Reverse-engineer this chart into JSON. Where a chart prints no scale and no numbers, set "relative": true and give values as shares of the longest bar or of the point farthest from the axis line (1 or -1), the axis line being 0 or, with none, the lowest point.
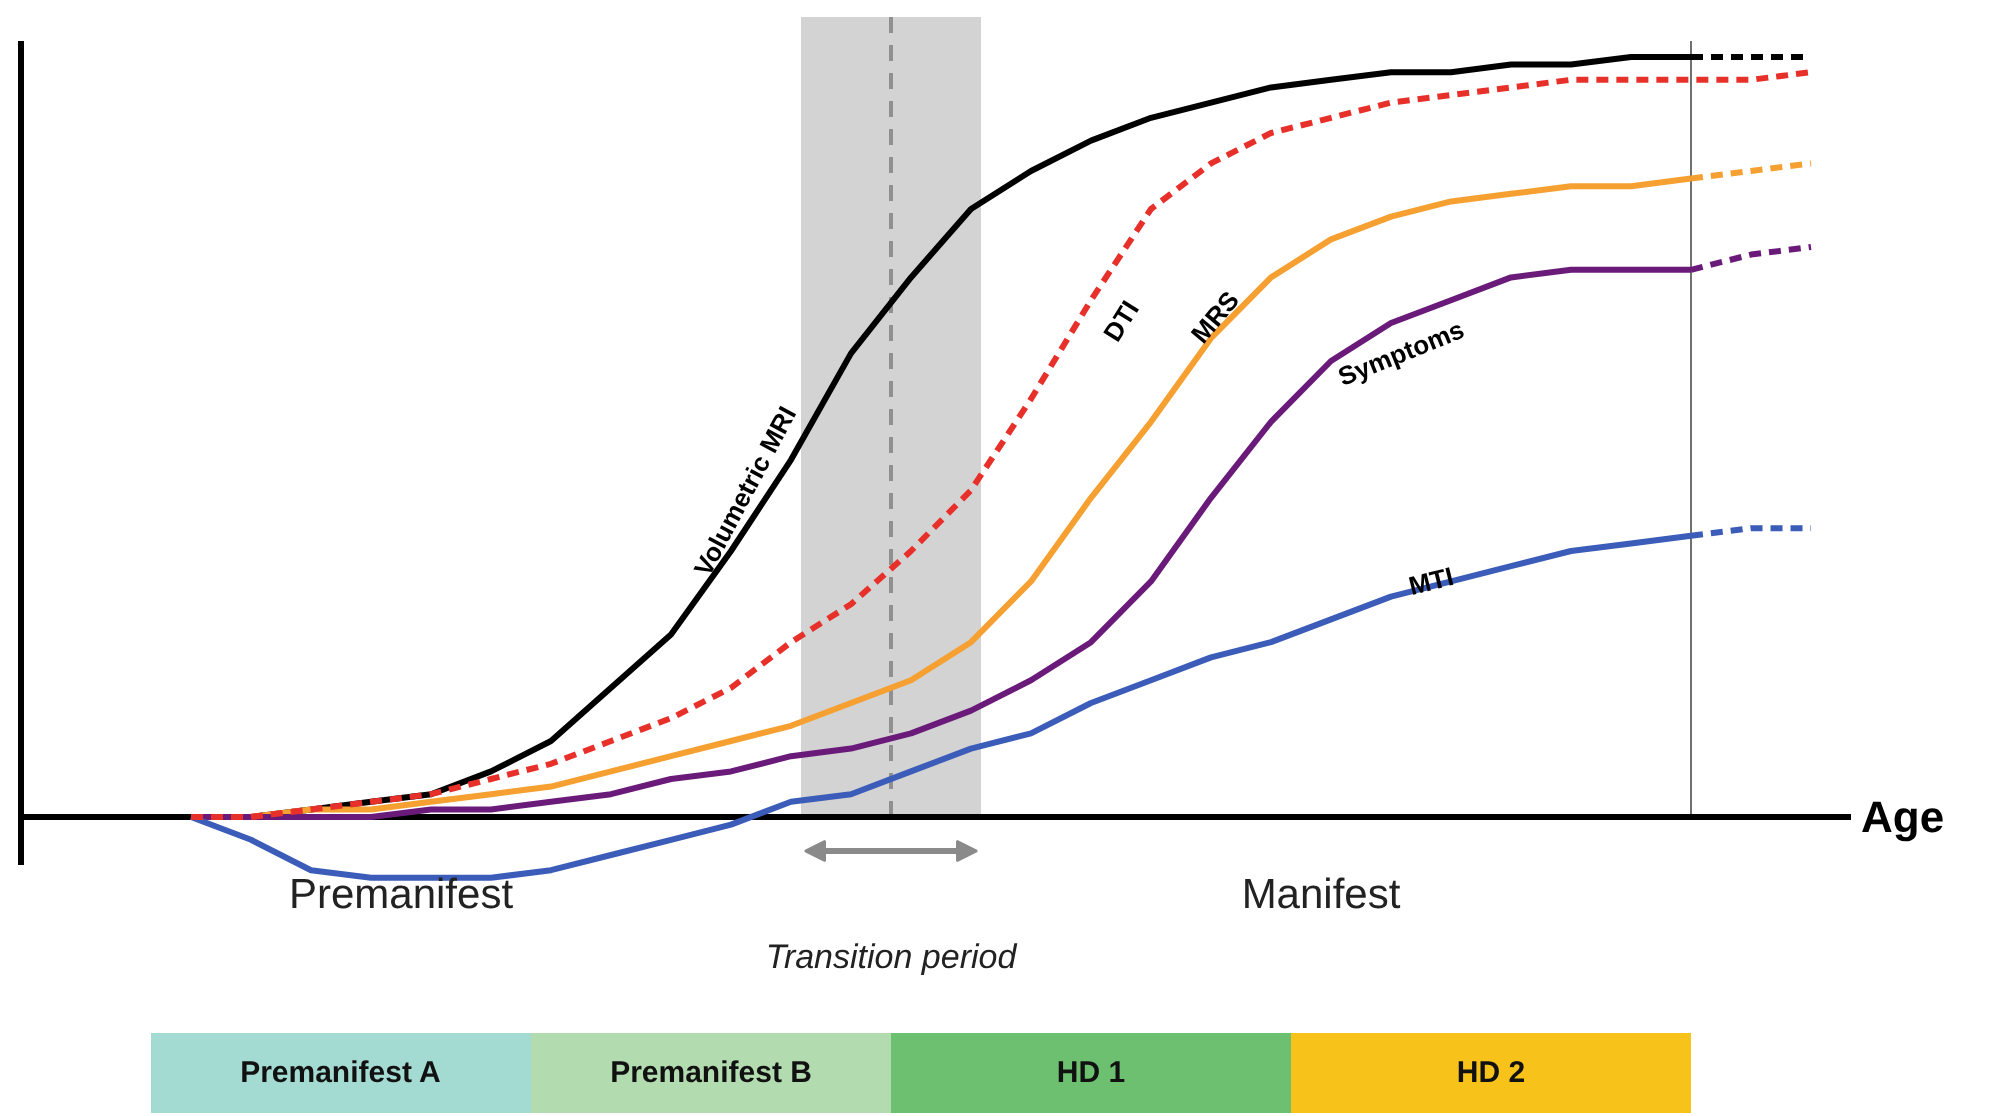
{
  "chart_data": {
    "type": "line",
    "relative": true,
    "xlabel": "Age",
    "grid": false,
    "marker": "none",
    "categories": [
      null,
      null,
      null,
      null,
      null,
      null,
      null,
      null,
      null,
      null,
      null,
      null,
      null,
      null,
      null,
      null,
      null,
      null,
      null,
      null,
      null,
      null,
      null,
      null,
      null,
      null,
      null,
      null
    ],
    "series": [
      {
        "name": "Volumetric MRI",
        "color": "#000000",
        "line_style": "solid",
        "values": [
          0,
          0.0,
          0.01,
          0.02,
          0.03,
          0.06,
          0.1,
          0.17,
          0.24,
          0.35,
          0.47,
          0.61,
          0.71,
          0.8,
          0.85,
          0.89,
          0.92,
          0.94,
          0.96,
          0.97,
          0.98,
          0.98,
          0.99,
          0.99,
          1.0,
          1,
          null,
          null
        ]
      },
      {
        "color": "#000000",
        "line_style": "dashed",
        "values": [
          null,
          null,
          null,
          null,
          null,
          null,
          null,
          null,
          null,
          null,
          null,
          null,
          null,
          null,
          null,
          null,
          null,
          null,
          null,
          null,
          null,
          null,
          null,
          null,
          null,
          1,
          1,
          1
        ]
      },
      {
        "name": "DTI",
        "color": "#e8302a",
        "line_style": "dashed",
        "values": [
          0,
          0.0,
          0.01,
          0.02,
          0.03,
          0.05,
          0.07,
          0.1,
          0.13,
          0.17,
          0.23,
          0.28,
          0.35,
          0.43,
          0.55,
          0.68,
          0.8,
          0.86,
          0.9,
          0.92,
          0.94,
          0.95,
          0.96,
          0.97,
          0.97,
          0.97,
          0.97,
          0.98
        ]
      },
      {
        "name": "MRS",
        "color": "#f5a030",
        "line_style": "solid",
        "values": [
          0,
          0.0,
          0.01,
          0.01,
          0.02,
          0.03,
          0.04,
          0.06,
          0.08,
          0.1,
          0.12,
          0.15,
          0.18,
          0.23,
          0.31,
          0.42,
          0.52,
          0.63,
          0.71,
          0.76,
          0.79,
          0.81,
          0.82,
          0.83,
          0.83,
          0.84,
          null,
          null
        ]
      },
      {
        "color": "#f5a030",
        "line_style": "dashed",
        "values": [
          null,
          null,
          null,
          null,
          null,
          null,
          null,
          null,
          null,
          null,
          null,
          null,
          null,
          null,
          null,
          null,
          null,
          null,
          null,
          null,
          null,
          null,
          null,
          null,
          null,
          0.84,
          0.85,
          0.86
        ]
      },
      {
        "name": "Symptoms",
        "color": "#6a1b7a",
        "line_style": "solid",
        "values": [
          0,
          0,
          0,
          0.0,
          0.01,
          0.01,
          0.02,
          0.03,
          0.05,
          0.06,
          0.08,
          0.09,
          0.11,
          0.14,
          0.18,
          0.23,
          0.31,
          0.42,
          0.52,
          0.6,
          0.65,
          0.68,
          0.71,
          0.72,
          0.72,
          0.72,
          null,
          null
        ]
      },
      {
        "color": "#6a1b7a",
        "line_style": "dashed",
        "values": [
          null,
          null,
          null,
          null,
          null,
          null,
          null,
          null,
          null,
          null,
          null,
          null,
          null,
          null,
          null,
          null,
          null,
          null,
          null,
          null,
          null,
          null,
          null,
          null,
          null,
          0.72,
          0.74,
          0.75
        ]
      },
      {
        "name": "MTI",
        "color": "#3b5cb8",
        "line_style": "solid",
        "values": [
          0,
          -0.03,
          -0.07,
          -0.08,
          -0.08,
          -0.08,
          -0.07,
          -0.05,
          -0.03,
          -0.01,
          0.02,
          0.03,
          0.06,
          0.09,
          0.11,
          0.15,
          0.18,
          0.21,
          0.23,
          0.26,
          0.29,
          0.31,
          0.33,
          0.35,
          0.36,
          0.37,
          null,
          null
        ]
      },
      {
        "color": "#3b5cb8",
        "line_style": "dashed",
        "values": [
          null,
          null,
          null,
          null,
          null,
          null,
          null,
          null,
          null,
          null,
          null,
          null,
          null,
          null,
          null,
          null,
          null,
          null,
          null,
          null,
          null,
          null,
          null,
          null,
          null,
          0.37,
          0.38,
          0.38
        ]
      }
    ],
    "annotations": [
      "Premanifest",
      "Transition period",
      "Manifest",
      "Premanifest A",
      "Premanifest B",
      "HD 1",
      "HD 2"
    ]
  }
}
